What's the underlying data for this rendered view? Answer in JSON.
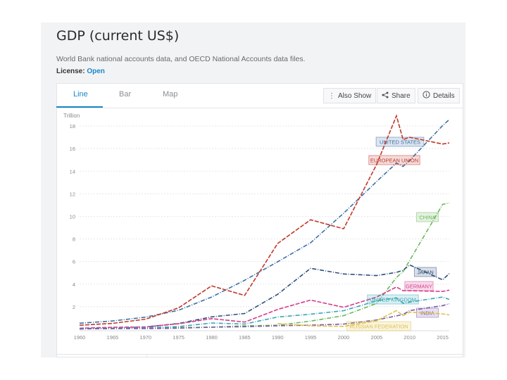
{
  "page": {
    "title": "GDP (current US$)",
    "source": "World Bank national accounts data, and OECD National Accounts data files.",
    "license_label": "License:",
    "license_value": "Open"
  },
  "tabs": [
    {
      "label": "Line",
      "active": true
    },
    {
      "label": "Bar",
      "active": false
    },
    {
      "label": "Map",
      "active": false
    }
  ],
  "toolbar": {
    "also_show": {
      "label": "Also Show",
      "icon": "vertical-ellipsis-icon"
    },
    "share": {
      "label": "Share",
      "icon": "share-icon"
    },
    "details": {
      "label": "Details",
      "icon": "info-icon"
    }
  },
  "colors": {
    "accent": "#1a87c7",
    "panel_bg": "#f2f3f5"
  },
  "chart_data": {
    "type": "line",
    "title": "",
    "ylabel": "Trillion",
    "xlabel": "",
    "xlim": [
      1960,
      2016
    ],
    "ylim": [
      0,
      19
    ],
    "x_ticks": [
      "1960",
      "1965",
      "1970",
      "1975",
      "1980",
      "1985",
      "1990",
      "1995",
      "2000",
      "2005",
      "2010",
      "2015"
    ],
    "y_ticks": [
      "2",
      "4",
      "6",
      "8",
      "10",
      "12",
      "14",
      "16",
      "18"
    ],
    "grid": true,
    "legend": "inline labels at right end",
    "x": [
      1960,
      1965,
      1970,
      1975,
      1980,
      1985,
      1990,
      1995,
      2000,
      2005,
      2008,
      2009,
      2010,
      2015,
      2016
    ],
    "series": [
      {
        "name": "UNITED STATES",
        "color": "#3b6fa5",
        "values": [
          0.54,
          0.74,
          1.08,
          1.69,
          2.86,
          4.34,
          5.98,
          7.66,
          10.28,
          13.09,
          14.72,
          14.42,
          14.96,
          18.04,
          18.57
        ]
      },
      {
        "name": "EUROPEAN UNION",
        "color": "#c0392b",
        "values": [
          0.36,
          0.53,
          0.9,
          1.9,
          3.85,
          3.0,
          7.6,
          9.7,
          8.9,
          14.6,
          18.9,
          16.8,
          17.0,
          16.4,
          16.5
        ]
      },
      {
        "name": "CHINA",
        "color": "#6cb85a",
        "values": [
          0.06,
          0.07,
          0.09,
          0.16,
          0.19,
          0.31,
          0.36,
          0.73,
          1.21,
          2.29,
          4.59,
          5.1,
          6.1,
          11.06,
          11.2
        ]
      },
      {
        "name": "JAPAN",
        "color": "#2e4f7a",
        "values": [
          0.04,
          0.09,
          0.21,
          0.52,
          1.1,
          1.4,
          3.1,
          5.4,
          4.9,
          4.76,
          5.04,
          5.23,
          5.7,
          4.38,
          4.94
        ]
      },
      {
        "name": "GERMANY",
        "color": "#d63c8e",
        "values": [
          0.1,
          0.18,
          0.21,
          0.49,
          0.95,
          0.64,
          1.76,
          2.59,
          1.95,
          2.86,
          3.75,
          3.42,
          3.42,
          3.36,
          3.47
        ]
      },
      {
        "name": "UNITED KINGDOM",
        "color": "#3aa6b5",
        "values": [
          0.07,
          0.1,
          0.13,
          0.24,
          0.56,
          0.47,
          1.09,
          1.34,
          1.65,
          2.52,
          2.79,
          2.31,
          2.41,
          2.86,
          2.65
        ]
      },
      {
        "name": "INDIA",
        "color": "#7b5aa6",
        "values": [
          0.04,
          0.06,
          0.06,
          0.1,
          0.19,
          0.23,
          0.32,
          0.37,
          0.47,
          0.83,
          1.19,
          1.32,
          1.66,
          2.1,
          2.26
        ]
      },
      {
        "name": "RUSSIAN FEDERATION",
        "color": "#e0c14a",
        "values": [
          null,
          null,
          null,
          null,
          null,
          null,
          0.52,
          0.31,
          0.26,
          0.76,
          1.66,
          1.22,
          1.52,
          1.37,
          1.28
        ]
      }
    ]
  }
}
